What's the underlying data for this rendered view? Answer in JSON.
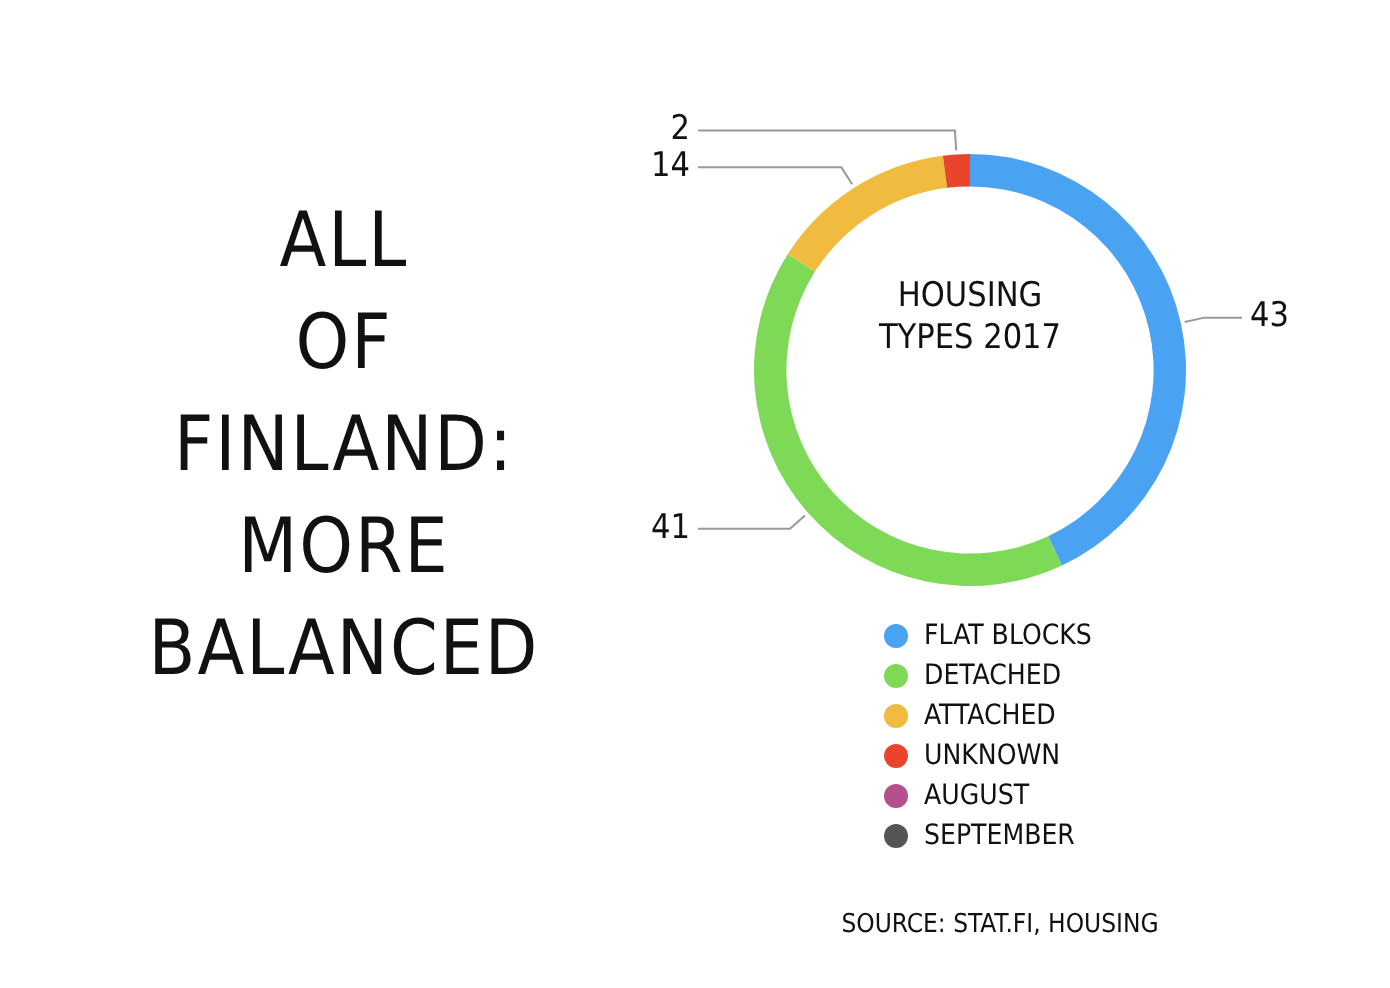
{
  "chart_data": {
    "type": "donut",
    "title": "ALL OF FINLAND: MORE BALANCED",
    "subtitle": "HOUSING TYPES 2017",
    "categories": [
      "FLAT BLOCKS",
      "DETACHED",
      "ATTACHED",
      "UNKNOWN",
      "AUGUST",
      "SEPTEMBER"
    ],
    "values": [
      43,
      41,
      14,
      2,
      0,
      0
    ],
    "colors": [
      "#4aa3f2",
      "#7ed957",
      "#f1bb40",
      "#e8452c",
      "#b5508f",
      "#555555"
    ],
    "value_labels": [
      "43",
      "41",
      "14",
      "2",
      null,
      null
    ],
    "legend": "bottom",
    "annotations": [
      "SOURCE: STAT.FI, HOUSING"
    ]
  }
}
